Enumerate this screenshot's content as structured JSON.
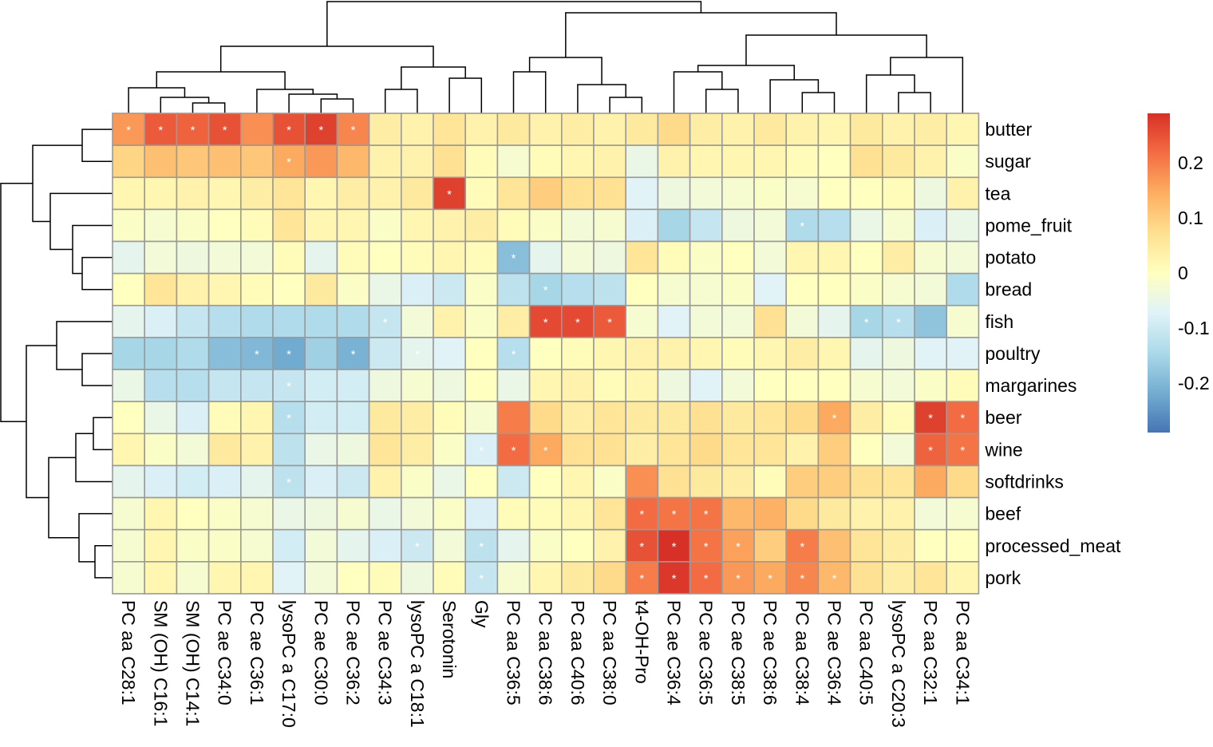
{
  "chart_data": {
    "type": "heatmap",
    "title": "",
    "rows": [
      "butter",
      "sugar",
      "tea",
      "pome_fruit",
      "potato",
      "bread",
      "fish",
      "poultry",
      "margarines",
      "beer",
      "wine",
      "softdrinks",
      "beef",
      "processed_meat",
      "pork"
    ],
    "columns": [
      "PC aa C28:1",
      "SM (OH) C16:1",
      "SM (OH) C14:1",
      "PC ae C34:0",
      "PC ae C36:1",
      "lysoPC a C17:0",
      "PC ae C30:0",
      "PC ae C36:2",
      "PC ae C34:3",
      "lysoPC a C18:1",
      "Serotonin",
      "Gly",
      "PC aa C36:5",
      "PC aa C38:6",
      "PC aa C40:6",
      "PC aa C38:0",
      "t4-OH-Pro",
      "PC ae C36:4",
      "PC ae C36:5",
      "PC ae C38:5",
      "PC ae C38:6",
      "PC aa C38:4",
      "PC ae C36:4",
      "PC aa C40:5",
      "lysoPC a C20:3",
      "PC aa C32:1",
      "PC aa C34:1"
    ],
    "values": [
      [
        0.17,
        0.24,
        0.23,
        0.25,
        0.18,
        0.25,
        0.27,
        0.19,
        0.04,
        0.03,
        0.06,
        0.03,
        0.05,
        0.03,
        0.04,
        0.03,
        0.05,
        0.08,
        0.04,
        0.03,
        0.05,
        0.03,
        0.02,
        0.05,
        0.03,
        0.04,
        0.02
      ],
      [
        0.09,
        0.12,
        0.11,
        0.12,
        0.11,
        0.15,
        0.17,
        0.13,
        0.03,
        0.03,
        0.07,
        0.01,
        -0.02,
        0.01,
        0.02,
        0.03,
        -0.05,
        0.03,
        0.02,
        0.02,
        0.02,
        0.01,
        0.0,
        0.07,
        0.05,
        0.03,
        -0.01
      ],
      [
        0.02,
        0.02,
        0.03,
        0.02,
        0.04,
        0.06,
        0.02,
        0.04,
        0.03,
        0.05,
        0.27,
        0.01,
        0.06,
        0.1,
        0.07,
        0.07,
        -0.07,
        -0.04,
        -0.03,
        -0.02,
        -0.01,
        -0.02,
        0.0,
        0.0,
        0.01,
        -0.04,
        0.03
      ],
      [
        -0.01,
        -0.02,
        -0.01,
        0.0,
        0.01,
        0.06,
        0.02,
        0.02,
        -0.01,
        0.02,
        0.03,
        0.04,
        0.01,
        -0.01,
        -0.03,
        -0.02,
        -0.08,
        -0.15,
        -0.11,
        -0.04,
        -0.03,
        -0.14,
        -0.13,
        -0.05,
        -0.02,
        -0.08,
        -0.05
      ],
      [
        -0.06,
        -0.03,
        -0.04,
        -0.03,
        -0.03,
        0.01,
        -0.06,
        0.01,
        0.0,
        0.01,
        0.02,
        0.01,
        -0.19,
        -0.06,
        -0.03,
        -0.04,
        0.06,
        0.01,
        -0.01,
        0.0,
        -0.03,
        0.02,
        0.02,
        0.0,
        0.04,
        -0.02,
        -0.03
      ],
      [
        0.0,
        0.06,
        0.03,
        0.02,
        0.01,
        0.0,
        0.05,
        -0.01,
        -0.05,
        -0.08,
        -0.1,
        -0.01,
        -0.12,
        -0.15,
        -0.13,
        -0.12,
        0.0,
        -0.02,
        -0.02,
        -0.01,
        -0.07,
        0.0,
        0.0,
        -0.01,
        -0.02,
        -0.03,
        -0.14
      ],
      [
        -0.06,
        -0.08,
        -0.11,
        -0.13,
        -0.14,
        -0.14,
        -0.14,
        -0.14,
        -0.11,
        -0.03,
        0.03,
        -0.01,
        0.04,
        0.26,
        0.26,
        0.24,
        -0.02,
        -0.07,
        -0.03,
        -0.03,
        0.07,
        -0.03,
        -0.06,
        -0.15,
        -0.13,
        -0.18,
        -0.02
      ],
      [
        -0.15,
        -0.15,
        -0.14,
        -0.19,
        -0.2,
        -0.22,
        -0.16,
        -0.21,
        -0.1,
        -0.06,
        -0.07,
        0.0,
        -0.13,
        0.0,
        0.01,
        0.02,
        0.03,
        0.03,
        0.02,
        0.01,
        0.02,
        0.04,
        0.02,
        -0.06,
        -0.04,
        -0.07,
        -0.07
      ],
      [
        -0.05,
        -0.13,
        -0.13,
        -0.11,
        -0.11,
        -0.11,
        -0.09,
        -0.09,
        -0.04,
        -0.02,
        -0.04,
        0.0,
        -0.05,
        0.02,
        0.03,
        0.01,
        0.02,
        -0.04,
        -0.07,
        -0.03,
        0.0,
        0.0,
        0.0,
        -0.02,
        -0.03,
        -0.01,
        0.01
      ],
      [
        0.0,
        -0.05,
        -0.08,
        0.01,
        0.02,
        -0.13,
        -0.09,
        -0.09,
        0.05,
        0.04,
        0.01,
        -0.02,
        0.2,
        0.08,
        0.04,
        0.06,
        0.05,
        0.05,
        0.07,
        0.05,
        0.06,
        0.08,
        0.15,
        0.04,
        0.01,
        0.27,
        0.22
      ],
      [
        0.02,
        -0.01,
        -0.03,
        0.05,
        0.03,
        -0.12,
        -0.05,
        -0.04,
        0.06,
        0.04,
        -0.01,
        -0.08,
        0.22,
        0.15,
        0.07,
        0.07,
        0.04,
        0.06,
        0.08,
        0.06,
        0.06,
        0.03,
        0.1,
        0.0,
        -0.03,
        0.23,
        0.21
      ],
      [
        -0.06,
        -0.08,
        -0.09,
        -0.08,
        -0.06,
        -0.12,
        -0.08,
        -0.1,
        0.03,
        -0.01,
        -0.05,
        0.0,
        -0.1,
        0.0,
        0.02,
        -0.01,
        0.18,
        0.07,
        0.05,
        0.04,
        0.01,
        0.1,
        0.1,
        0.07,
        0.06,
        0.15,
        0.08
      ],
      [
        -0.02,
        0.02,
        0.0,
        -0.01,
        -0.02,
        -0.05,
        -0.04,
        -0.02,
        -0.05,
        -0.03,
        -0.01,
        -0.08,
        0.01,
        0.01,
        0.02,
        0.06,
        0.22,
        0.21,
        0.21,
        0.13,
        0.14,
        0.08,
        0.05,
        0.03,
        0.03,
        -0.03,
        -0.02
      ],
      [
        -0.02,
        0.02,
        -0.01,
        -0.01,
        -0.02,
        -0.09,
        -0.03,
        -0.06,
        -0.08,
        -0.1,
        -0.03,
        -0.12,
        -0.06,
        -0.01,
        0.0,
        0.03,
        0.25,
        0.29,
        0.21,
        0.16,
        0.1,
        0.2,
        0.12,
        0.06,
        0.04,
        0.0,
        0.0
      ],
      [
        -0.02,
        0.02,
        -0.02,
        0.02,
        0.02,
        -0.07,
        -0.03,
        0.0,
        0.01,
        -0.04,
        0.01,
        -0.11,
        -0.02,
        0.02,
        0.05,
        0.08,
        0.2,
        0.28,
        0.22,
        0.17,
        0.15,
        0.19,
        0.13,
        0.07,
        0.04,
        0.06,
        0.02
      ]
    ],
    "significance": [
      [
        true,
        true,
        true,
        true,
        false,
        true,
        true,
        true,
        false,
        false,
        false,
        false,
        false,
        false,
        false,
        false,
        false,
        false,
        false,
        false,
        false,
        false,
        false,
        false,
        false,
        false,
        false
      ],
      [
        false,
        false,
        false,
        false,
        false,
        true,
        false,
        false,
        false,
        false,
        false,
        false,
        false,
        false,
        false,
        false,
        false,
        false,
        false,
        false,
        false,
        false,
        false,
        false,
        false,
        false,
        false
      ],
      [
        false,
        false,
        false,
        false,
        false,
        false,
        false,
        false,
        false,
        false,
        true,
        false,
        false,
        false,
        false,
        false,
        false,
        false,
        false,
        false,
        false,
        false,
        false,
        false,
        false,
        false,
        false
      ],
      [
        false,
        false,
        false,
        false,
        false,
        false,
        false,
        false,
        false,
        false,
        false,
        false,
        false,
        false,
        false,
        false,
        false,
        false,
        false,
        false,
        false,
        true,
        false,
        false,
        false,
        false,
        false
      ],
      [
        false,
        false,
        false,
        false,
        false,
        false,
        false,
        false,
        false,
        false,
        false,
        false,
        true,
        false,
        false,
        false,
        false,
        false,
        false,
        false,
        false,
        false,
        false,
        false,
        false,
        false,
        false
      ],
      [
        false,
        false,
        false,
        false,
        false,
        false,
        false,
        false,
        false,
        false,
        false,
        false,
        false,
        true,
        false,
        false,
        false,
        false,
        false,
        false,
        false,
        false,
        false,
        false,
        false,
        false,
        false
      ],
      [
        false,
        false,
        false,
        false,
        false,
        false,
        false,
        false,
        true,
        false,
        false,
        false,
        false,
        true,
        true,
        true,
        false,
        false,
        false,
        false,
        false,
        false,
        false,
        true,
        true,
        false,
        false
      ],
      [
        false,
        false,
        false,
        false,
        true,
        true,
        false,
        true,
        false,
        true,
        false,
        false,
        true,
        false,
        false,
        false,
        false,
        false,
        false,
        false,
        false,
        false,
        false,
        false,
        false,
        false,
        false
      ],
      [
        false,
        false,
        false,
        false,
        false,
        true,
        false,
        false,
        false,
        false,
        false,
        false,
        false,
        false,
        false,
        false,
        false,
        false,
        false,
        false,
        false,
        false,
        false,
        false,
        false,
        false,
        false
      ],
      [
        false,
        false,
        false,
        false,
        false,
        true,
        false,
        false,
        false,
        false,
        false,
        false,
        false,
        false,
        false,
        false,
        false,
        false,
        false,
        false,
        false,
        false,
        true,
        false,
        false,
        true,
        true
      ],
      [
        false,
        false,
        false,
        false,
        false,
        false,
        false,
        false,
        false,
        false,
        false,
        true,
        true,
        true,
        false,
        false,
        false,
        false,
        false,
        false,
        false,
        false,
        false,
        false,
        false,
        true,
        true
      ],
      [
        false,
        false,
        false,
        false,
        false,
        true,
        false,
        false,
        false,
        false,
        false,
        false,
        false,
        false,
        false,
        false,
        false,
        false,
        false,
        false,
        false,
        false,
        false,
        false,
        false,
        false,
        false
      ],
      [
        false,
        false,
        false,
        false,
        false,
        false,
        false,
        false,
        false,
        false,
        false,
        false,
        false,
        false,
        false,
        false,
        true,
        true,
        true,
        false,
        false,
        false,
        false,
        false,
        false,
        false,
        false
      ],
      [
        false,
        false,
        false,
        false,
        false,
        false,
        false,
        false,
        false,
        true,
        false,
        true,
        false,
        false,
        false,
        false,
        true,
        true,
        true,
        true,
        false,
        true,
        false,
        false,
        false,
        false,
        false
      ],
      [
        false,
        false,
        false,
        false,
        false,
        false,
        false,
        false,
        false,
        false,
        false,
        true,
        false,
        false,
        false,
        false,
        true,
        true,
        true,
        true,
        true,
        true,
        true,
        false,
        false,
        false,
        false
      ]
    ],
    "significance_marker": "*",
    "color_scale": {
      "min": -0.29,
      "max": 0.29,
      "stops": [
        "#4575b4",
        "#74add1",
        "#abd9e9",
        "#e0f3f8",
        "#ffffbf",
        "#fee090",
        "#fdae61",
        "#f46d43",
        "#d73027"
      ],
      "ticks": [
        {
          "value": 0.2,
          "label": "0.2"
        },
        {
          "value": 0.1,
          "label": "0.1"
        },
        {
          "value": 0,
          "label": "0"
        },
        {
          "value": -0.1,
          "label": "-0.1"
        },
        {
          "value": -0.2,
          "label": "-0.2"
        }
      ]
    },
    "grid": true,
    "cell_border_color": "#9a9a9a",
    "legend_position": "right",
    "row_dendrogram": "left",
    "column_dendrogram": "top"
  }
}
